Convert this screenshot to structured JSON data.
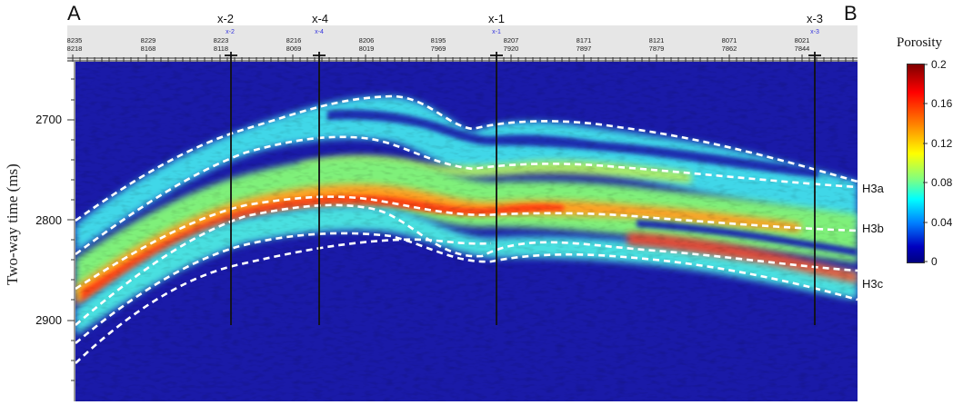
{
  "panel": {
    "left_label": "A",
    "right_label": "B",
    "y_axis_label": "Two-way time (ms)",
    "y_ticks": [
      "2700",
      "2800",
      "2900"
    ]
  },
  "header": {
    "trace_labels": [
      {
        "top": "8235",
        "bottom": "8218"
      },
      {
        "top": "8229",
        "bottom": "8168"
      },
      {
        "top": "8223",
        "bottom": "8118"
      },
      {
        "top": "8216",
        "bottom": "8069"
      },
      {
        "top": "8206",
        "bottom": "8019"
      },
      {
        "top": "8195",
        "bottom": "7969"
      },
      {
        "top": "8207",
        "bottom": "7920"
      },
      {
        "top": "8171",
        "bottom": "7897"
      },
      {
        "top": "8121",
        "bottom": "7879"
      },
      {
        "top": "8071",
        "bottom": "7862"
      },
      {
        "top": "8021",
        "bottom": "7844"
      }
    ]
  },
  "wells": [
    {
      "name": "x-2",
      "tag": "x-2"
    },
    {
      "name": "x-4",
      "tag": "x-4"
    },
    {
      "name": "x-1",
      "tag": "x-1"
    },
    {
      "name": "x-3",
      "tag": "x-3"
    }
  ],
  "horizons": [
    "H3a",
    "H3b",
    "H3c"
  ],
  "colorbar": {
    "title": "Porosity",
    "ticks": [
      "0.2",
      "0.16",
      "0.12",
      "0.08",
      "0.04",
      "0"
    ],
    "range": [
      0,
      0.2
    ],
    "colors": [
      "#7f0000",
      "#ff0000",
      "#ff8000",
      "#ffff00",
      "#80ff80",
      "#00ffff",
      "#0080ff",
      "#0000c0",
      "#00007f"
    ]
  },
  "colors": {
    "background": "#1a1aa8",
    "well_line": "#111111",
    "horizon_dash": "#ffffff"
  }
}
